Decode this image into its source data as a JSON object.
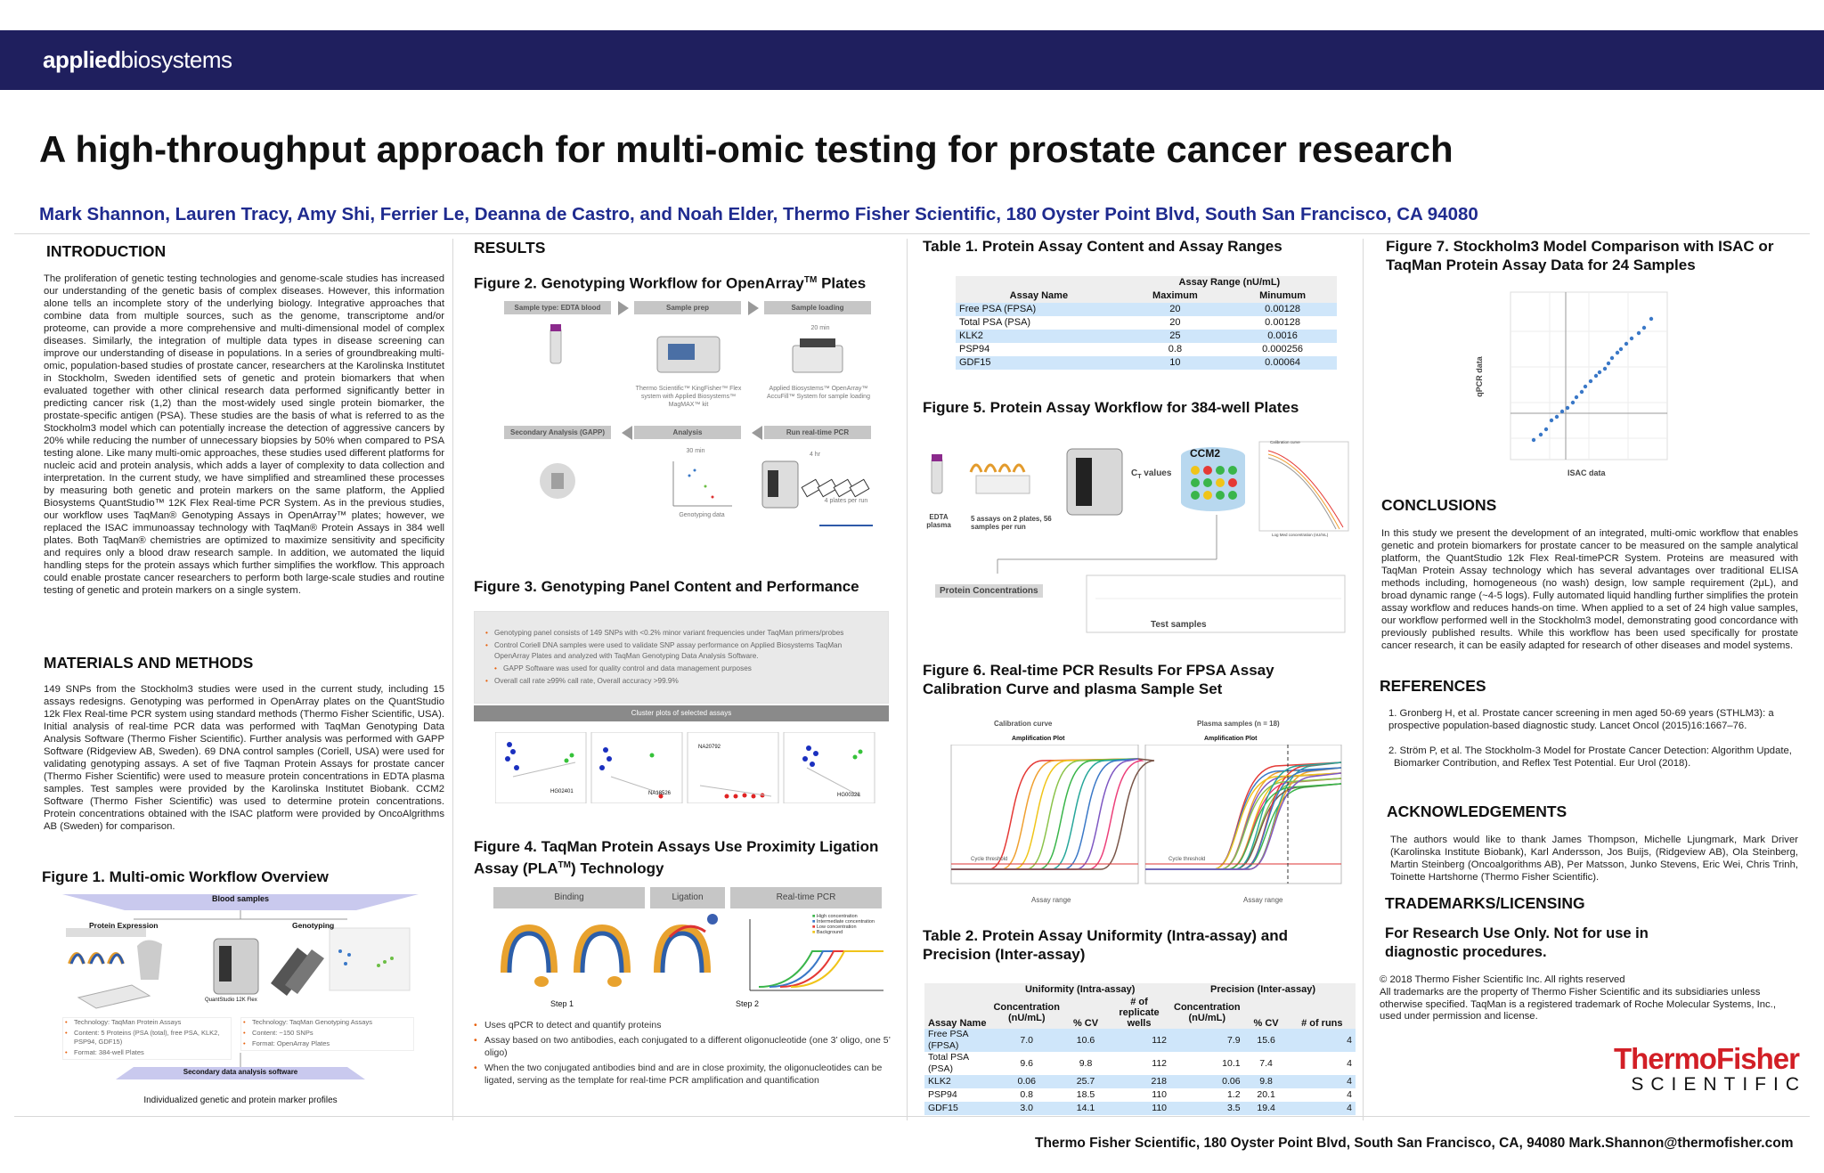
{
  "header": {
    "brand_bold": "applied",
    "brand_light": "biosystems"
  },
  "title": "A high-throughput approach for multi-omic testing for prostate cancer research",
  "authors": "Mark Shannon, Lauren Tracy, Amy Shi, Ferrier Le, Deanna de Castro, and Noah Elder, Thermo Fisher Scientific, 180 Oyster Point Blvd, South San Francisco, CA 94080",
  "intro": {
    "heading": "INTRODUCTION",
    "text": "The proliferation of genetic testing technologies and genome-scale studies has increased our understanding of the genetic basis of complex diseases. However, this information alone tells an incomplete story of the underlying biology. Integrative approaches that combine data from multiple sources, such as the genome, transcriptome and/or proteome, can provide a more comprehensive and multi-dimensional model of complex diseases. Similarly, the integration of multiple data types in disease screening can improve our understanding of disease in populations. In a series of groundbreaking multi-omic, population-based studies of prostate cancer, researchers at the Karolinska Institutet in Stockholm, Sweden identified sets of genetic and protein biomarkers that when evaluated together with other clinical research data performed significantly better in predicting cancer risk (1,2) than the most-widely used single protein biomarker, the prostate-specific antigen (PSA). These studies are the basis of what is referred to as the Stockholm3 model which can potentially increase the detection of aggressive cancers by 20% while reducing the number of unnecessary biopsies by 50% when compared to PSA testing alone. Like many multi-omic approaches, these studies used different platforms for nucleic acid and protein analysis, which adds a layer of complexity to data collection and interpretation. In the current study, we have simplified and streamlined these processes by measuring both genetic and protein markers on the same platform, the Applied Biosystems QuantStudio™ 12K Flex Real-time PCR System. As in the previous studies, our workflow uses TaqMan® Genotyping Assays in OpenArray™ plates; however, we replaced the ISAC immunoassay technology with TaqMan® Protein Assays in 384 well plates. Both TaqMan® chemistries are optimized to maximize sensitivity and specificity and requires only a blood draw research sample. In addition, we automated the liquid handling steps for the protein assays which further simplifies the workflow. This approach could enable prostate cancer researchers to perform both large-scale studies and routine testing of genetic and protein markers on a single system."
  },
  "methods": {
    "heading": "MATERIALS AND METHODS",
    "text": "149 SNPs from the Stockholm3 studies were used in the current study, including 15 assays redesigns. Genotyping was performed in OpenArray plates on the QuantStudio 12k Flex Real-time PCR system using standard methods (Thermo Fisher Scientific, USA). Initial analysis of real-time PCR data was performed with TaqMan Genotyping Data Analysis Software (Thermo Fisher Scientific). Further analysis was performed with GAPP Software (Ridgeview AB, Sweden). 69 DNA control samples (Coriell, USA) were used for validating genotyping assays. A set of five Taqman Protein Assays for prostate cancer (Thermo Fisher Scientific) were used to measure protein concentrations in EDTA plasma samples. Test samples were provided by the Karolinska Institutet Biobank. CCM2 Software (Thermo Fisher Scientific) was used to determine protein concentrations. Protein concentrations obtained with the ISAC platform were provided by OncoAlgrithms AB (Sweden) for comparison."
  },
  "fig1": {
    "heading": "Figure 1.  Multi-omic Workflow Overview",
    "blood": "Blood samples",
    "protein": "Protein Expression",
    "geno": "Genotyping",
    "instrument": "QuantStudio 12K Flex",
    "left_bullets": [
      "Technology: TaqMan Protein Assays",
      "Content: 5 Proteins (PSA (total), free PSA, KLK2, PSP94, GDF15)",
      "Format: 384-well Plates"
    ],
    "right_bullets": [
      "Technology: TaqMan Genotyping Assays",
      "Content: ~150 SNPs",
      "Format: OpenArray Plates"
    ],
    "secondary": "Secondary data analysis software",
    "caption": "Individualized genetic and protein marker profiles"
  },
  "results": {
    "heading": "RESULTS"
  },
  "fig2": {
    "heading_pre": "Figure 2. Genotyping Workflow for OpenArray",
    "heading_sup": "TM",
    "heading_post": " Plates",
    "steps": [
      "Sample type: EDTA blood",
      "Sample prep",
      "Sample loading",
      "Secondary Analysis (GAPP)",
      "Analysis",
      "Run real-time PCR"
    ],
    "cap1": "Thermo Scientific™ KingFisher™ Flex system with Applied Biosystems™ MagMAX™ kit",
    "cap2": "Applied Biosystems™ OpenArray™ AccuFill™ System for sample loading",
    "t20": "20 min",
    "t30": "30 min",
    "t4": "4 hr",
    "geno_data": "Genotyping data",
    "plates": "4 plates per run"
  },
  "fig3": {
    "heading": "Figure 3. Genotyping Panel Content and Performance",
    "bullets": [
      "Genotyping panel consists of 149 SNPs with <0.2% minor variant frequencies under TaqMan primers/probes",
      "Control Coriell DNA samples were used to validate SNP assay performance on Applied Biosystems TaqMan OpenArray Plates and analyzed with TaqMan Genotyping Data Analysis Software.",
      "GAPP Software was used for quality control and data management purposes",
      "Overall call rate ≥99% call rate, Overall accuracy >99.9%"
    ],
    "bar": "Cluster plots of selected assays",
    "labels": [
      "HG02401",
      "NA18526",
      "NA20792",
      "HG00328"
    ]
  },
  "fig4": {
    "heading_pre": "Figure 4. TaqMan Protein Assays Use Proximity Ligation Assay (PLA",
    "heading_sup": "TM",
    "heading_post": ") Technology",
    "binding": "Binding",
    "ligation": "Ligation",
    "rt": "Real-time PCR",
    "step1": "Step 1",
    "step2": "Step 2",
    "legend": [
      "High concentration",
      "Intermediate concentration",
      "Low concentration",
      "Background"
    ],
    "bullets": [
      "Uses qPCR to detect and quantify proteins",
      "Assay based on two antibodies, each conjugated to a different oligonucleotide (one 3’ oligo, one 5’ oligo)",
      "When the two conjugated antibodies bind and are in close proximity, the oligonucleotides can be ligated, serving as the template for real-time PCR amplification and quantification"
    ]
  },
  "table1": {
    "heading": "Table 1. Protein Assay Content and Assay Ranges",
    "group": "Assay Range (nU/mL)",
    "cols": [
      "Assay Name",
      "Maximum",
      "Minumum"
    ],
    "rows": [
      [
        "Free PSA (FPSA)",
        "20",
        "0.00128"
      ],
      [
        "Total PSA (PSA)",
        "20",
        "0.00128"
      ],
      [
        "KLK2",
        "25",
        "0.0016"
      ],
      [
        "PSP94",
        "0.8",
        "0.000256"
      ],
      [
        "GDF15",
        "10",
        "0.00064"
      ]
    ]
  },
  "fig5": {
    "heading": "Figure 5. Protein Assay Workflow for 384-well Plates",
    "edta": "EDTA plasma",
    "assays": "5 assays on 2 plates, 56 samples per run",
    "ct": "C",
    "ct_sub": "T",
    "ct_post": " values",
    "ccm2": "CCM2",
    "conc": "Protein Concentrations",
    "test": "Test samples",
    "cal_title": "Calibration curve",
    "cal_x": "Log Med concentration (nU/mL)"
  },
  "fig6": {
    "heading": "Figure 6. Real-time PCR Results For FPSA Assay Calibration Curve and plasma Sample Set",
    "left_title": "Calibration curve",
    "right_title": "Plasma samples (n = 18)",
    "amp": "Amplification Plot",
    "cycle_threshold": "Cycle threshold",
    "range": "Assay range"
  },
  "table2": {
    "heading": "Table 2. Protein Assay Uniformity (Intra-assay) and Precision (Inter-assay)",
    "group1": "Uniformity (Intra-assay)",
    "group2": "Precision (Inter-assay)",
    "cols": [
      "Assay Name",
      "Concentration (nU/mL)",
      "% CV",
      "# of replicate wells",
      "Concentration (nU/mL)",
      "% CV",
      "# of runs"
    ],
    "rows": [
      [
        "Free PSA (FPSA)",
        "7.0",
        "10.6",
        "112",
        "7.9",
        "15.6",
        "4"
      ],
      [
        "Total PSA (PSA)",
        "9.6",
        "9.8",
        "112",
        "10.1",
        "7.4",
        "4"
      ],
      [
        "KLK2",
        "0.06",
        "25.7",
        "218",
        "0.06",
        "9.8",
        "4"
      ],
      [
        "PSP94",
        "0.8",
        "18.5",
        "110",
        "1.2",
        "20.1",
        "4"
      ],
      [
        "GDF15",
        "3.0",
        "14.1",
        "110",
        "3.5",
        "19.4",
        "4"
      ]
    ]
  },
  "fig7": {
    "heading": "Figure 7. Stockholm3 Model Comparison with ISAC or TaqMan Protein Assay Data for 24 Samples",
    "xlabel": "ISAC data",
    "ylabel": "qPCR data"
  },
  "conclusions": {
    "heading": "CONCLUSIONS",
    "text": "In this study we present the development of an integrated, multi-omic workflow that enables genetic and protein biomarkers for prostate cancer to be measured on the sample analytical platform, the QuantStudio 12k Flex Real-timePCR System. Proteins are measured with TaqMan Protein Assay technology which has several advantages over traditional ELISA methods including, homogeneous (no wash) design, low sample requirement (2μL), and broad dynamic range (~4-5 logs). Fully automated liquid handling further simplifies the protein assay workflow and reduces hands-on time. When applied to a set of 24 high value samples, our workflow performed well in the Stockholm3 model, demonstrating good concordance with previously published results. While this workflow has been used specifically for prostate cancer research, it can be easily adapted for research of other diseases and model systems."
  },
  "references": {
    "heading": "REFERENCES",
    "ref1": "1. Gronberg H, et al. Prostate cancer screening in men aged 50-69 years (STHLM3): a prospective population-based diagnostic study. Lancet Oncol (2015)16:1667–76.",
    "ref2a": "2. Ström P, et al. The Stockholm-3 Model for Prostate Cancer Detection: Algorithm Update,",
    "ref2b": "Biomarker Contribution, and Reflex Test Potential. Eur Urol (2018)."
  },
  "ack": {
    "heading": "ACKNOWLEDGEMENTS",
    "text": "The authors would like to thank James Thompson, Michelle Ljungmark, Mark Driver (Karolinska Institute Biobank), Karl Andersson, Jos Buijs, (Ridgeview AB), Ola Steinberg, Martin Steinberg (Oncoalgorithms AB), Per Matsson, Junko Stevens, Eric Wei, Chris Trinh, Toinette Hartshorne (Thermo Fisher Scientific)."
  },
  "trademarks": {
    "heading": "TRADEMARKS/LICENSING",
    "ruo": "For Research Use Only. Not for use in diagnostic procedures.",
    "copyright": "© 2018 Thermo Fisher Scientific Inc. All rights reserved",
    "text": "All trademarks are the property of Thermo Fisher Scientific and its subsidiaries unless otherwise specified. TaqMan is a registered trademark of Roche Molecular Systems, Inc., used under permission and license."
  },
  "logo": {
    "line1": "ThermoFisher",
    "line2": "SCIENTIFIC"
  },
  "footer": "Thermo Fisher Scientific, 180 Oyster Point Blvd, South San Francisco, CA, 94080  Mark.Shannon@thermofisher.com",
  "colors": {
    "band": "#1f1f5e",
    "authors": "#1f2b8f",
    "logo_red": "#d21f26",
    "table_blue": "#cfe6fa"
  }
}
